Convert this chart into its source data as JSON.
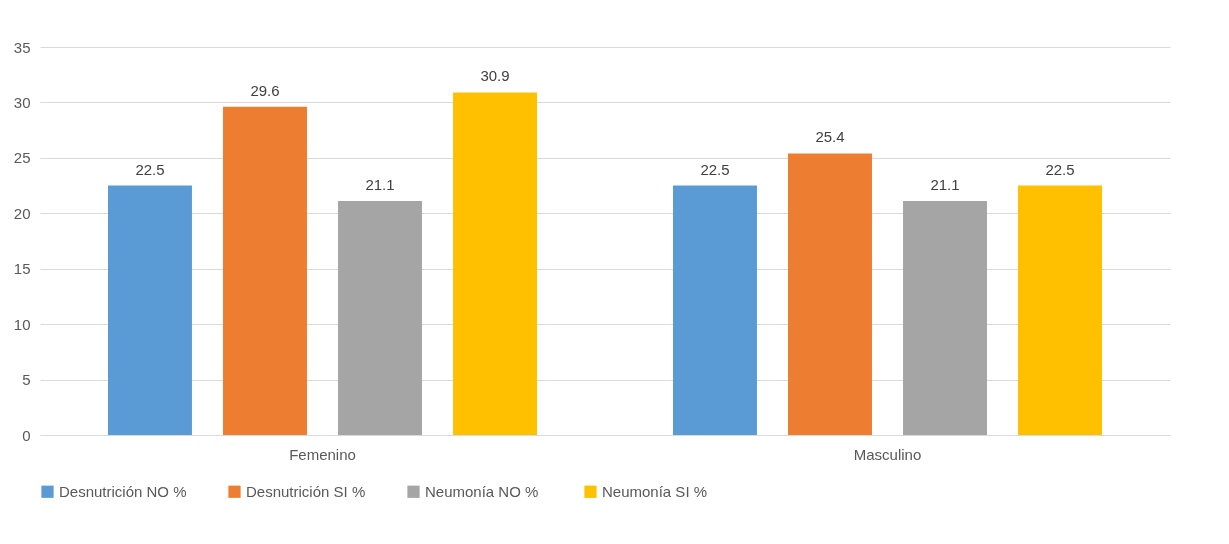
{
  "chart_data": {
    "type": "bar",
    "categories": [
      "Femenino",
      "Masculino"
    ],
    "series": [
      {
        "name": "Desnutrición NO %",
        "color": "#5b9bd5",
        "values": [
          22.5,
          22.5
        ]
      },
      {
        "name": "Desnutrición SI %",
        "color": "#ed7d31",
        "values": [
          29.6,
          25.4
        ]
      },
      {
        "name": "Neumonía NO  %",
        "color": "#a5a5a5",
        "values": [
          21.1,
          21.1
        ]
      },
      {
        "name": "Neumonía SI %",
        "color": "#ffc000",
        "values": [
          30.9,
          22.5
        ]
      }
    ],
    "ylim": [
      0,
      35
    ],
    "yticks": [
      0,
      5,
      10,
      15,
      20,
      25,
      30,
      35
    ],
    "grid": "y",
    "legend": "bottom",
    "data_labels": true
  }
}
